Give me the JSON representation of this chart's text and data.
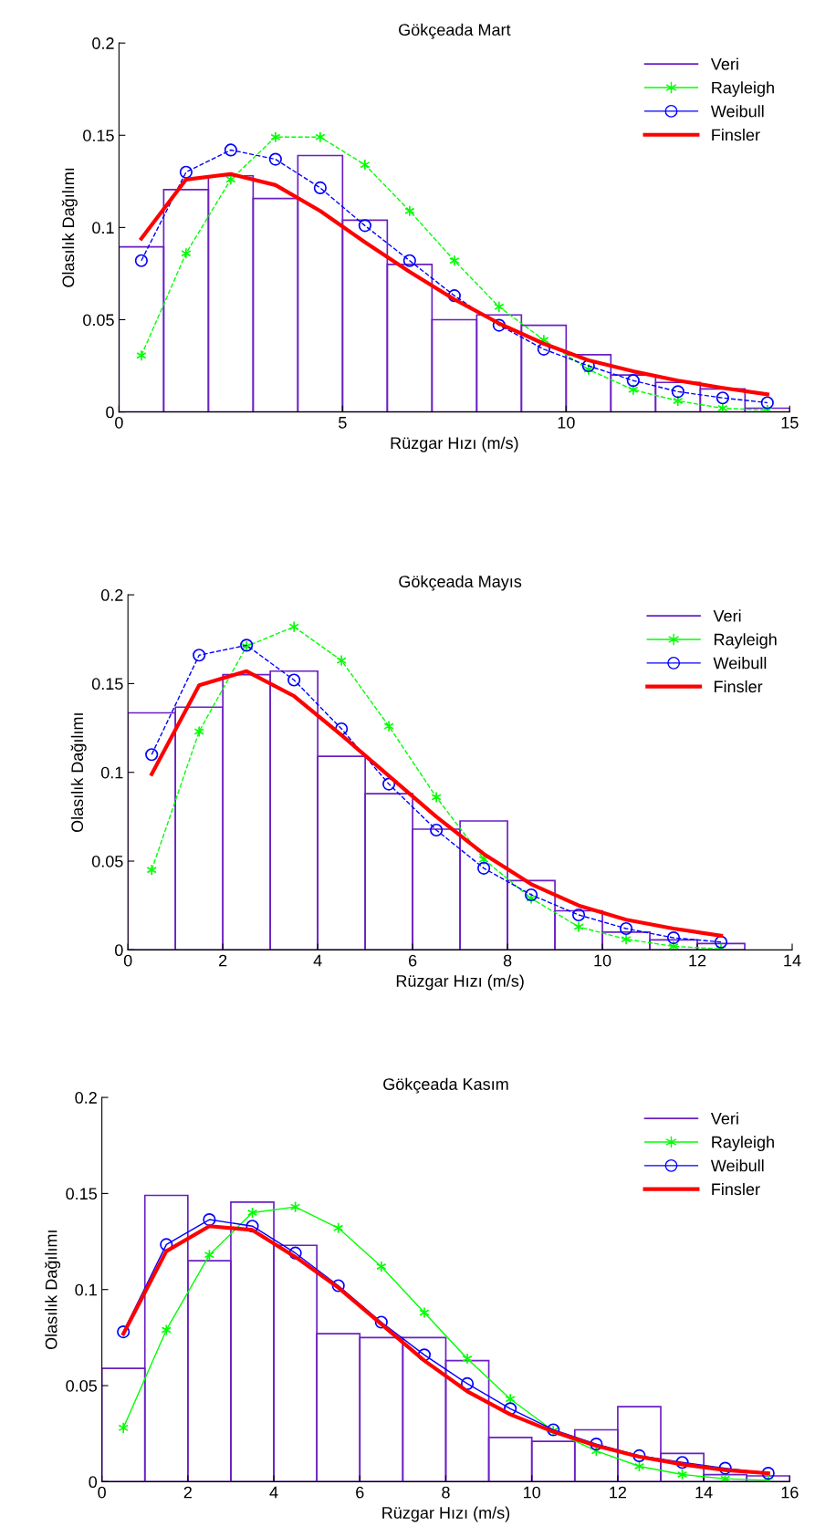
{
  "chart_data": [
    {
      "type": "histogram",
      "title": "Gökçeada Mart",
      "xlabel": "Rüzgar Hızı (m/s)",
      "ylabel": "Olasılık Dağılımı",
      "xlim": [
        0,
        15
      ],
      "ylim": [
        0,
        0.2
      ],
      "xticks": [
        0,
        5,
        10,
        15
      ],
      "yticks": [
        0,
        0.05,
        0.1,
        0.15,
        0.2
      ],
      "legend": "top right",
      "grid": false,
      "bins": [
        0,
        1,
        2,
        3,
        4,
        5,
        6,
        7,
        8,
        9,
        10,
        11,
        12,
        13,
        14,
        15
      ],
      "series": [
        {
          "name": "Veri",
          "color": "#6a1fc2",
          "values": [
            0.0895,
            0.1205,
            0.128,
            0.1157,
            0.139,
            0.104,
            0.08,
            0.05,
            0.0526,
            0.047,
            0.031,
            0.02,
            0.016,
            0.0125,
            0.002
          ]
        },
        {
          "name": "Rayleigh",
          "type": "line",
          "color": "#00ff00",
          "marker": "cross",
          "line_style": "dashed",
          "x": [
            0.5,
            1.5,
            2.5,
            3.5,
            4.5,
            5.5,
            6.5,
            7.5,
            8.5,
            9.5,
            10.5,
            11.5,
            12.5,
            13.5,
            14.5
          ],
          "values": [
            0.0306,
            0.086,
            0.126,
            0.149,
            0.149,
            0.134,
            0.109,
            0.082,
            0.057,
            0.039,
            0.023,
            0.012,
            0.006,
            0.002,
            0.001
          ]
        },
        {
          "name": "Weibull",
          "type": "line",
          "color": "#0000ff",
          "marker": "circle",
          "line_style": "dashed",
          "x": [
            0.5,
            1.5,
            2.5,
            3.5,
            4.5,
            5.5,
            6.5,
            7.5,
            8.5,
            9.5,
            10.5,
            11.5,
            12.5,
            13.5,
            14.5
          ],
          "values": [
            0.082,
            0.13,
            0.142,
            0.137,
            0.1215,
            0.101,
            0.082,
            0.063,
            0.047,
            0.034,
            0.025,
            0.017,
            0.011,
            0.0076,
            0.005
          ]
        },
        {
          "name": "Finsler",
          "type": "line",
          "color": "#ff0000",
          "marker": "none",
          "line_style": "solid",
          "x": [
            0.5,
            1.5,
            2.5,
            3.5,
            4.5,
            5.5,
            6.5,
            7.5,
            8.5,
            9.5,
            10.5,
            11.5,
            12.5,
            13.5,
            14.5
          ],
          "values": [
            0.094,
            0.126,
            0.129,
            0.123,
            0.109,
            0.092,
            0.076,
            0.061,
            0.048,
            0.037,
            0.028,
            0.022,
            0.017,
            0.013,
            0.0095
          ]
        }
      ]
    },
    {
      "type": "histogram",
      "title": "Gökçeada Mayıs",
      "xlabel": "Rüzgar Hızı (m/s)",
      "ylabel": "Olasılık Dağılımı",
      "xlim": [
        0,
        14
      ],
      "ylim": [
        0,
        0.2
      ],
      "xticks": [
        0,
        2,
        4,
        6,
        8,
        10,
        12,
        14
      ],
      "yticks": [
        0,
        0.05,
        0.1,
        0.15,
        0.2
      ],
      "legend": "top right",
      "grid": false,
      "bins": [
        0,
        1,
        2,
        3,
        4,
        5,
        6,
        7,
        8,
        9,
        10,
        11,
        12,
        13
      ],
      "series": [
        {
          "name": "Veri",
          "color": "#6a1fc2",
          "values": [
            0.1335,
            0.1367,
            0.155,
            0.157,
            0.109,
            0.088,
            0.068,
            0.0726,
            0.039,
            0.022,
            0.01,
            0.0056,
            0.0036
          ]
        },
        {
          "name": "Rayleigh",
          "type": "line",
          "color": "#00ff00",
          "marker": "cross",
          "line_style": "dashed",
          "x": [
            0.5,
            1.5,
            2.5,
            3.5,
            4.5,
            5.5,
            6.5,
            7.5,
            8.5,
            9.5,
            10.5,
            11.5,
            12.5
          ],
          "values": [
            0.045,
            0.123,
            0.171,
            0.182,
            0.163,
            0.126,
            0.086,
            0.051,
            0.029,
            0.013,
            0.006,
            0.002,
            0.0005
          ]
        },
        {
          "name": "Weibull",
          "type": "line",
          "color": "#0000ff",
          "marker": "circle",
          "line_style": "dashed",
          "x": [
            0.5,
            1.5,
            2.5,
            3.5,
            4.5,
            5.5,
            6.5,
            7.5,
            8.5,
            9.5,
            10.5,
            11.5,
            12.5
          ],
          "values": [
            0.11,
            0.166,
            0.1716,
            0.152,
            0.1245,
            0.0934,
            0.0675,
            0.046,
            0.031,
            0.0197,
            0.012,
            0.0068,
            0.0044
          ]
        },
        {
          "name": "Finsler",
          "type": "line",
          "color": "#ff0000",
          "marker": "none",
          "line_style": "solid",
          "x": [
            0.5,
            1.5,
            2.5,
            3.5,
            4.5,
            5.5,
            6.5,
            7.5,
            8.5,
            9.5,
            10.5,
            11.5,
            12.5
          ],
          "values": [
            0.099,
            0.149,
            0.157,
            0.143,
            0.121,
            0.098,
            0.075,
            0.054,
            0.037,
            0.025,
            0.017,
            0.012,
            0.008
          ]
        }
      ]
    },
    {
      "type": "histogram",
      "title": "Gökçeada Kasım",
      "xlabel": "Rüzgar Hızı (m/s)",
      "ylabel": "Olasılık Dağılımı",
      "xlim": [
        0,
        16
      ],
      "ylim": [
        0,
        0.2
      ],
      "xticks": [
        0,
        2,
        4,
        6,
        8,
        10,
        12,
        14,
        16
      ],
      "yticks": [
        0,
        0.05,
        0.1,
        0.15,
        0.2
      ],
      "legend": "top right",
      "grid": false,
      "bins": [
        0,
        1,
        2,
        3,
        4,
        5,
        6,
        7,
        8,
        9,
        10,
        11,
        12,
        13,
        14,
        15,
        16
      ],
      "series": [
        {
          "name": "Veri",
          "color": "#6a1fc2",
          "values": [
            0.059,
            0.149,
            0.115,
            0.1455,
            0.123,
            0.077,
            0.075,
            0.075,
            0.063,
            0.023,
            0.021,
            0.027,
            0.039,
            0.0147,
            0.0037,
            0.003
          ]
        },
        {
          "name": "Rayleigh",
          "type": "line",
          "color": "#00ff00",
          "marker": "cross",
          "line_style": "solid",
          "x": [
            0.5,
            1.5,
            2.5,
            3.5,
            4.5,
            5.5,
            6.5,
            7.5,
            8.5,
            9.5,
            10.5,
            11.5,
            12.5,
            13.5,
            14.5,
            15.5
          ],
          "values": [
            0.028,
            0.079,
            0.118,
            0.14,
            0.143,
            0.132,
            0.112,
            0.088,
            0.064,
            0.043,
            0.0265,
            0.016,
            0.008,
            0.0037,
            0.0015,
            0.0007
          ]
        },
        {
          "name": "Weibull",
          "type": "line",
          "color": "#0000ff",
          "marker": "circle",
          "line_style": "solid",
          "x": [
            0.5,
            1.5,
            2.5,
            3.5,
            4.5,
            5.5,
            6.5,
            7.5,
            8.5,
            9.5,
            10.5,
            11.5,
            12.5,
            13.5,
            14.5,
            15.5
          ],
          "values": [
            0.078,
            0.1234,
            0.1364,
            0.133,
            0.119,
            0.102,
            0.083,
            0.066,
            0.051,
            0.038,
            0.027,
            0.0196,
            0.0135,
            0.01,
            0.007,
            0.0044
          ]
        },
        {
          "name": "Finsler",
          "type": "line",
          "color": "#ff0000",
          "marker": "none",
          "line_style": "solid",
          "x": [
            0.5,
            1.5,
            2.5,
            3.5,
            4.5,
            5.5,
            6.5,
            7.5,
            8.5,
            9.5,
            10.5,
            11.5,
            12.5,
            13.5,
            14.5,
            15.5
          ],
          "values": [
            0.077,
            0.12,
            0.133,
            0.131,
            0.117,
            0.101,
            0.082,
            0.063,
            0.047,
            0.035,
            0.026,
            0.0187,
            0.013,
            0.009,
            0.006,
            0.0044
          ]
        }
      ]
    }
  ]
}
